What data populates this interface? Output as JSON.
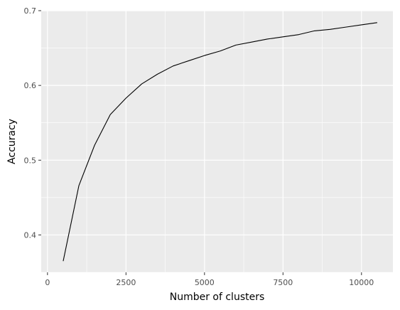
{
  "chart_data": {
    "type": "line",
    "title": "",
    "xlabel": "Number of clusters",
    "ylabel": "Accuracy",
    "xlim": [
      -200,
      11000
    ],
    "ylim": [
      0.35,
      0.7
    ],
    "x_ticks": [
      0,
      2500,
      5000,
      7500,
      10000
    ],
    "x_tick_labels": [
      "0",
      "2500",
      "5000",
      "7500",
      "10000"
    ],
    "y_ticks": [
      0.4,
      0.5,
      0.6,
      0.7
    ],
    "y_tick_labels": [
      "0.4",
      "0.5",
      "0.6",
      "0.7"
    ],
    "grid": true,
    "series": [
      {
        "x": [
          500,
          1000,
          1500,
          2000,
          2500,
          3000,
          3500,
          4000,
          4500,
          5000,
          5500,
          6000,
          6500,
          7000,
          7500,
          8000,
          8500,
          9000,
          9500,
          10000,
          10500
        ],
        "values": [
          0.365,
          0.466,
          0.52,
          0.561,
          0.583,
          0.602,
          0.615,
          0.626,
          0.633,
          0.64,
          0.646,
          0.654,
          0.658,
          0.662,
          0.665,
          0.668,
          0.673,
          0.675,
          0.678,
          0.681,
          0.684
        ]
      }
    ],
    "colors": {
      "panel": "#ebebeb",
      "grid": "#ffffff",
      "line": "#000000"
    }
  }
}
